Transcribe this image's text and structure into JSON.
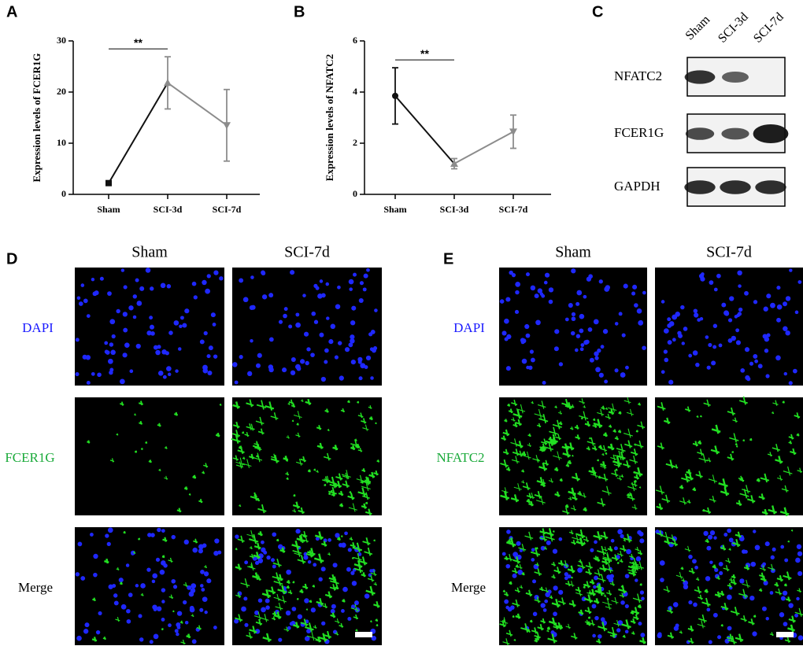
{
  "panel_labels": [
    "A",
    "B",
    "C",
    "D",
    "E"
  ],
  "chart_data": [
    {
      "type": "line",
      "ylabel": "Expression levels of FCER1G",
      "categories": [
        "Sham",
        "SCI-3d",
        "SCI-7d"
      ],
      "values": [
        2.2,
        21.8,
        13.5
      ],
      "errors": [
        0.3,
        5.1,
        7.0
      ],
      "colors": [
        "#111111",
        "#8c8c8c",
        "#8c8c8c"
      ],
      "markers": [
        "square",
        "triangle",
        "triangle-down"
      ],
      "annotation": "**",
      "ylim": [
        0,
        30
      ],
      "yticks": [
        0,
        10,
        20,
        30
      ]
    },
    {
      "type": "line",
      "ylabel": "Expression levels of NFATC2",
      "categories": [
        "Sham",
        "SCI-3d",
        "SCI-7d"
      ],
      "values": [
        3.85,
        1.2,
        2.45
      ],
      "errors": [
        1.1,
        0.2,
        0.65
      ],
      "colors": [
        "#111111",
        "#8c8c8c",
        "#8c8c8c"
      ],
      "markers": [
        "circle",
        "triangle",
        "triangle-down"
      ],
      "annotation": "**",
      "ylim": [
        0,
        6
      ],
      "yticks": [
        0,
        2,
        4,
        6
      ]
    }
  ],
  "western_blot": {
    "lanes": [
      "Sham",
      "SCI-3d",
      "SCI-7d"
    ],
    "bands": [
      "NFATC2",
      "FCER1G",
      "GAPDH"
    ]
  },
  "panel_d": {
    "columns": [
      "Sham",
      "SCI-7d"
    ],
    "rows": [
      "DAPI",
      "FCER1G",
      "Merge"
    ]
  },
  "panel_e": {
    "columns": [
      "Sham",
      "SCI-7d"
    ],
    "rows": [
      "DAPI",
      "NFATC2",
      "Merge"
    ]
  }
}
